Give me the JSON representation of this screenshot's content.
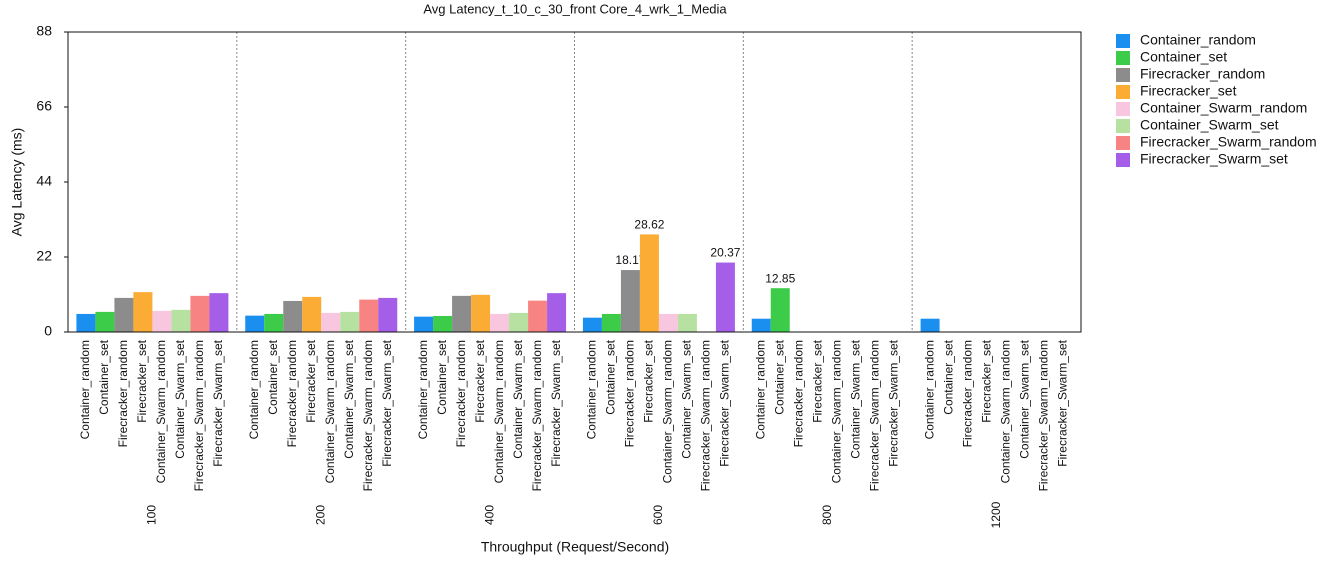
{
  "chart_data": {
    "type": "bar",
    "title": "Avg Latency_t_10_c_30_front Core_4_wrk_1_Media",
    "x_label": "Throughput (Request/Second)",
    "y_label": "Avg Latency (ms)",
    "categories": [
      "100",
      "200",
      "400",
      "600",
      "800",
      "1200"
    ],
    "ylim": [
      0,
      88
    ],
    "yticks": [
      0,
      22,
      44,
      66,
      88
    ],
    "grid": false,
    "legend": "right",
    "series": [
      {
        "name": "Container_random",
        "color": "#1a8fef",
        "values": [
          5.3,
          4.8,
          4.5,
          4.2,
          3.9,
          3.9
        ],
        "value_labels": [
          null,
          null,
          null,
          null,
          null,
          null
        ]
      },
      {
        "name": "Container_set",
        "color": "#3dcc4a",
        "values": [
          5.9,
          5.3,
          4.7,
          5.3,
          12.85,
          null
        ],
        "value_labels": [
          null,
          null,
          null,
          null,
          "12.85",
          null
        ]
      },
      {
        "name": "Firecracker_random",
        "color": "#8c8c8c",
        "values": [
          10.0,
          9.1,
          10.6,
          18.17,
          null,
          null
        ],
        "value_labels": [
          null,
          null,
          null,
          "18.17",
          null,
          null
        ]
      },
      {
        "name": "Firecracker_set",
        "color": "#fbac34",
        "values": [
          11.7,
          10.3,
          10.9,
          28.62,
          null,
          null
        ],
        "value_labels": [
          null,
          null,
          null,
          "28.62",
          null,
          null
        ]
      },
      {
        "name": "Container_Swarm_random",
        "color": "#f9c6df",
        "values": [
          6.2,
          5.6,
          5.3,
          5.3,
          null,
          null
        ],
        "value_labels": [
          null,
          null,
          null,
          null,
          null,
          null
        ]
      },
      {
        "name": "Container_Swarm_set",
        "color": "#b7e1a1",
        "values": [
          6.5,
          5.9,
          5.6,
          5.3,
          null,
          null
        ],
        "value_labels": [
          null,
          null,
          null,
          null,
          null,
          null
        ]
      },
      {
        "name": "Firecracker_Swarm_random",
        "color": "#f78383",
        "values": [
          10.6,
          9.5,
          9.2,
          null,
          null,
          null
        ],
        "value_labels": [
          null,
          null,
          null,
          null,
          null,
          null
        ]
      },
      {
        "name": "Firecracker_Swarm_set",
        "color": "#a45ee8",
        "values": [
          11.4,
          10.0,
          11.4,
          20.37,
          null,
          null
        ],
        "value_labels": [
          null,
          null,
          null,
          "20.37",
          null,
          null
        ]
      }
    ]
  }
}
